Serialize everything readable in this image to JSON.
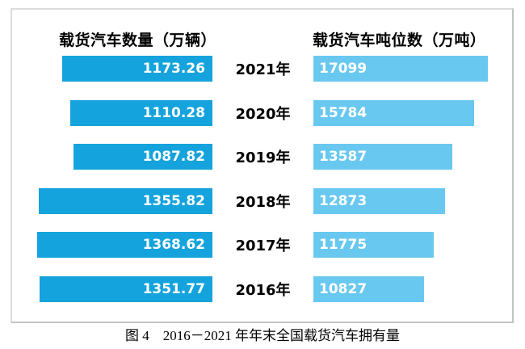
{
  "colors": {
    "count_bar": "#14A3DC",
    "tonnage_bar": "#69C8F0",
    "bar_label": "#FFFFFF",
    "box_border": "#C9C9C9",
    "text": "#000000"
  },
  "chart_data": {
    "type": "bar",
    "orientation": "horizontal-paired",
    "categories": [
      "2021年",
      "2020年",
      "2019年",
      "2018年",
      "2017年",
      "2016年"
    ],
    "series": [
      {
        "name": "载货汽车数量（万辆）",
        "side": "left",
        "color": "#14A3DC",
        "values": [
          1173.26,
          1110.28,
          1087.82,
          1355.82,
          1368.62,
          1351.77
        ]
      },
      {
        "name": "载货汽车吨位数（万吨）",
        "side": "right",
        "color": "#69C8F0",
        "values": [
          17099,
          15784,
          13587,
          12873,
          11775,
          10827
        ]
      }
    ],
    "title": "图 4　2016－2021 年年末全国载货汽车拥有量",
    "value_labels": "inside-bar",
    "axis": "none",
    "grid": false,
    "legend_position": "column-headers-top"
  }
}
